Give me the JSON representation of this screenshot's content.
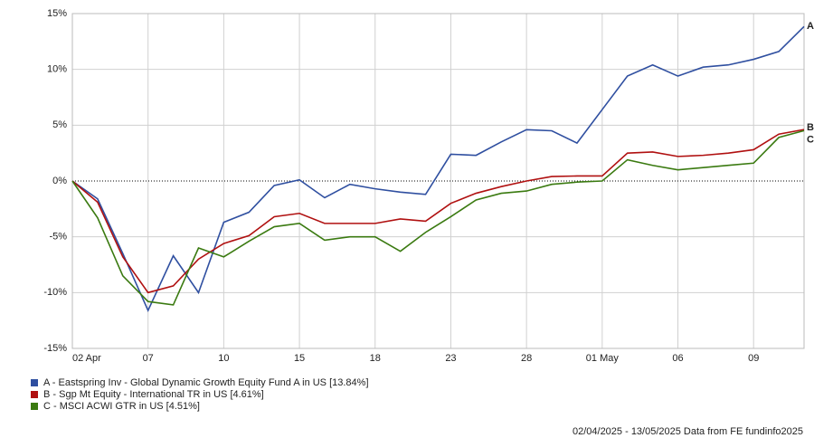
{
  "chart_data": {
    "type": "line",
    "categories": [
      "02 Apr",
      null,
      null,
      "07",
      null,
      null,
      "10",
      null,
      null,
      "15",
      null,
      null,
      "18",
      null,
      null,
      "23",
      null,
      null,
      "28",
      null,
      null,
      "01 May",
      null,
      null,
      "06",
      null,
      null,
      "09",
      null,
      null
    ],
    "ylim": [
      -15,
      15
    ],
    "yticks": [
      {
        "value": -15,
        "label": "-15%"
      },
      {
        "value": -10,
        "label": "-10%"
      },
      {
        "value": -5,
        "label": "-5%"
      },
      {
        "value": 0,
        "label": "0%"
      },
      {
        "value": 5,
        "label": "5%"
      },
      {
        "value": 10,
        "label": "10%"
      },
      {
        "value": 15,
        "label": "15%"
      }
    ],
    "grid": true,
    "series": [
      {
        "name": "A - Eastspring Inv - Global Dynamic Growth Equity Fund A in US [13.84%]",
        "label": "A",
        "color": "#2f4fa0",
        "values": [
          0,
          -1.6,
          -6.5,
          -11.6,
          -6.7,
          -10,
          -3.7,
          -2.8,
          -0.4,
          0.1,
          -1.5,
          -0.3,
          -0.7,
          -1.0,
          -1.2,
          2.4,
          2.3,
          3.5,
          4.6,
          4.5,
          3.4,
          6.4,
          9.4,
          10.4,
          9.4,
          10.2,
          10.4,
          10.9,
          11.6,
          13.84
        ]
      },
      {
        "name": "B - Sgp Mt Equity - International TR in US [4.61%]",
        "label": "B",
        "color": "#b01010",
        "values": [
          0,
          -1.9,
          -6.8,
          -10,
          -9.4,
          -7.0,
          -5.6,
          -4.9,
          -3.2,
          -2.9,
          -3.8,
          -3.8,
          -3.8,
          -3.4,
          -3.6,
          -2.0,
          -1.1,
          -0.5,
          0,
          0.4,
          0.45,
          0.45,
          2.5,
          2.6,
          2.2,
          2.3,
          2.5,
          2.8,
          4.2,
          4.61
        ]
      },
      {
        "name": "C - MSCI ACWI GTR in US [4.51%]",
        "label": "C",
        "color": "#3a7a10",
        "values": [
          0,
          -3.3,
          -8.5,
          -10.8,
          -11.1,
          -6.0,
          -6.8,
          -5.4,
          -4.1,
          -3.8,
          -5.3,
          -5.0,
          -5.0,
          -6.3,
          -4.6,
          -3.2,
          -1.7,
          -1.1,
          -0.9,
          -0.3,
          -0.1,
          0,
          1.9,
          1.4,
          1.0,
          1.2,
          1.4,
          1.6,
          3.9,
          4.51
        ]
      }
    ],
    "footer": "02/04/2025 - 13/05/2025 Data from FE fundinfo2025"
  }
}
